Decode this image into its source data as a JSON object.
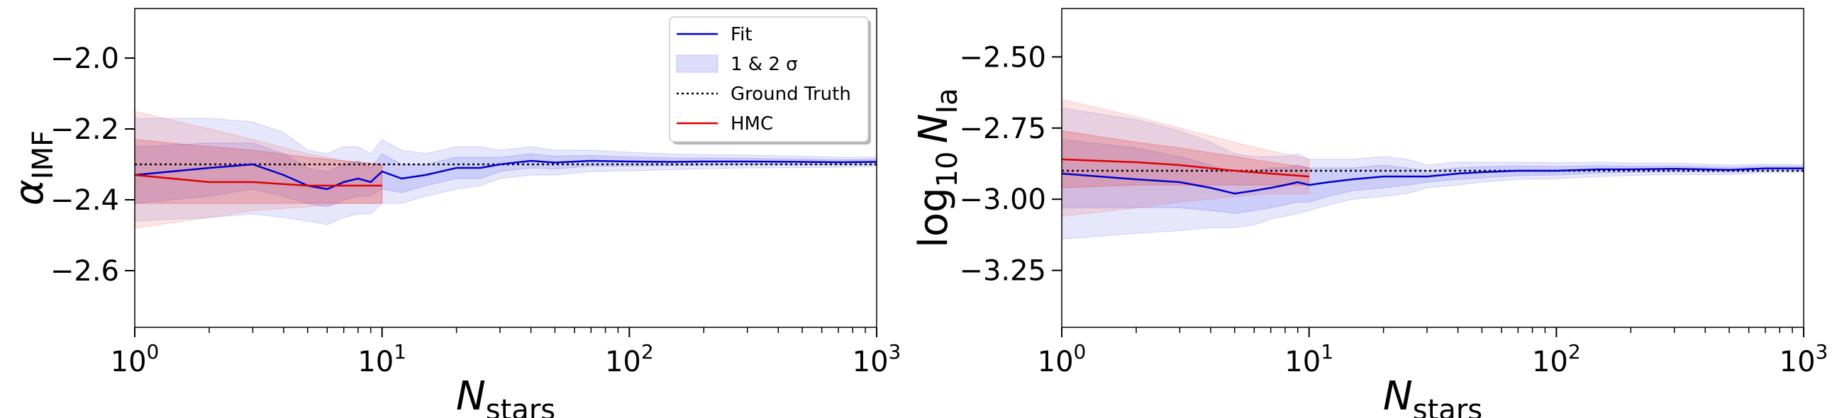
{
  "chart_data": [
    {
      "type": "line",
      "xlabel": "N",
      "xlabel_sub": "stars",
      "ylabel": "α",
      "ylabel_sub": "IMF",
      "xscale": "log",
      "xlim": [
        1,
        1000
      ],
      "ylim": [
        -2.76,
        -1.86
      ],
      "x_ticks": [
        1,
        10,
        100,
        1000
      ],
      "x_tick_labels": [
        {
          "base": "10",
          "exp": "0"
        },
        {
          "base": "10",
          "exp": "1"
        },
        {
          "base": "10",
          "exp": "2"
        },
        {
          "base": "10",
          "exp": "3"
        }
      ],
      "y_ticks": [
        -2.0,
        -2.2,
        -2.4,
        -2.6
      ],
      "y_tick_labels": [
        "−2.0",
        "−2.2",
        "−2.4",
        "−2.6"
      ],
      "legend": {
        "placement": "top-right",
        "entries": [
          {
            "label": "Fit",
            "style": "line",
            "color": "#0000cc"
          },
          {
            "label": "1 & 2 σ",
            "style": "band",
            "color": "#6666ee"
          },
          {
            "label": "Ground Truth",
            "style": "dotted",
            "color": "#000000"
          },
          {
            "label": "HMC",
            "style": "line",
            "color": "#dd0000"
          }
        ]
      },
      "ground_truth": -2.3,
      "fit": {
        "name": "Fit",
        "color": "#0000cc",
        "x": [
          1,
          2,
          3,
          4,
          5,
          6,
          7,
          8,
          9,
          10,
          12,
          15,
          20,
          25,
          30,
          40,
          50,
          70,
          100,
          150,
          200,
          300,
          500,
          700,
          1000
        ],
        "y": [
          -2.33,
          -2.31,
          -2.3,
          -2.33,
          -2.36,
          -2.37,
          -2.35,
          -2.34,
          -2.35,
          -2.32,
          -2.34,
          -2.33,
          -2.31,
          -2.31,
          -2.3,
          -2.29,
          -2.295,
          -2.29,
          -2.292,
          -2.293,
          -2.292,
          -2.292,
          -2.293,
          -2.294,
          -2.293
        ],
        "lo1": [
          -2.41,
          -2.39,
          -2.37,
          -2.39,
          -2.41,
          -2.42,
          -2.4,
          -2.39,
          -2.39,
          -2.37,
          -2.38,
          -2.36,
          -2.34,
          -2.34,
          -2.32,
          -2.31,
          -2.313,
          -2.305,
          -2.305,
          -2.304,
          -2.302,
          -2.301,
          -2.301,
          -2.301,
          -2.3
        ],
        "hi1": [
          -2.25,
          -2.24,
          -2.24,
          -2.27,
          -2.31,
          -2.32,
          -2.3,
          -2.29,
          -2.31,
          -2.27,
          -2.3,
          -2.3,
          -2.28,
          -2.28,
          -2.28,
          -2.27,
          -2.277,
          -2.275,
          -2.279,
          -2.282,
          -2.282,
          -2.283,
          -2.285,
          -2.287,
          -2.286
        ],
        "lo2": [
          -2.46,
          -2.45,
          -2.44,
          -2.45,
          -2.46,
          -2.47,
          -2.45,
          -2.44,
          -2.44,
          -2.41,
          -2.41,
          -2.39,
          -2.37,
          -2.36,
          -2.34,
          -2.33,
          -2.33,
          -2.32,
          -2.318,
          -2.315,
          -2.312,
          -2.31,
          -2.309,
          -2.308,
          -2.306
        ],
        "hi2": [
          -2.17,
          -2.17,
          -2.18,
          -2.21,
          -2.26,
          -2.27,
          -2.25,
          -2.25,
          -2.27,
          -2.23,
          -2.26,
          -2.27,
          -2.25,
          -2.25,
          -2.26,
          -2.25,
          -2.26,
          -2.26,
          -2.266,
          -2.271,
          -2.272,
          -2.274,
          -2.277,
          -2.28,
          -2.28
        ]
      },
      "hmc": {
        "name": "HMC",
        "color": "#dd0000",
        "x": [
          1,
          2,
          3,
          5,
          7,
          10
        ],
        "y": [
          -2.33,
          -2.35,
          -2.35,
          -2.36,
          -2.36,
          -2.36
        ],
        "lo1": [
          -2.41,
          -2.41,
          -2.41,
          -2.41,
          -2.41,
          -2.41
        ],
        "hi1": [
          -2.23,
          -2.25,
          -2.26,
          -2.28,
          -2.29,
          -2.3
        ],
        "lo2": [
          -2.48,
          -2.45,
          -2.43,
          -2.42,
          -2.41,
          -2.41
        ],
        "hi2": [
          -2.15,
          -2.2,
          -2.23,
          -2.27,
          -2.29,
          -2.3
        ]
      }
    },
    {
      "type": "line",
      "xlabel": "N",
      "xlabel_sub": "stars",
      "ylabel_prefix": "log",
      "ylabel_prefix_sub": "10",
      "ylabel": "N",
      "ylabel_sub": "Ia",
      "xscale": "log",
      "xlim": [
        1,
        1000
      ],
      "ylim": [
        -3.45,
        -2.33
      ],
      "x_ticks": [
        1,
        10,
        100,
        1000
      ],
      "x_tick_labels": [
        {
          "base": "10",
          "exp": "0"
        },
        {
          "base": "10",
          "exp": "1"
        },
        {
          "base": "10",
          "exp": "2"
        },
        {
          "base": "10",
          "exp": "3"
        }
      ],
      "y_ticks": [
        -2.5,
        -2.75,
        -3.0,
        -3.25
      ],
      "y_tick_labels": [
        "−2.50",
        "−2.75",
        "−3.00",
        "−3.25"
      ],
      "ground_truth": -2.9,
      "fit": {
        "name": "Fit",
        "color": "#0000cc",
        "x": [
          1,
          2,
          3,
          4,
          5,
          6,
          7,
          8,
          9,
          10,
          12,
          15,
          20,
          25,
          30,
          40,
          50,
          70,
          100,
          150,
          200,
          300,
          500,
          700,
          1000
        ],
        "y": [
          -2.91,
          -2.93,
          -2.94,
          -2.96,
          -2.98,
          -2.97,
          -2.96,
          -2.95,
          -2.94,
          -2.95,
          -2.94,
          -2.93,
          -2.92,
          -2.92,
          -2.92,
          -2.91,
          -2.905,
          -2.9,
          -2.9,
          -2.895,
          -2.895,
          -2.893,
          -2.897,
          -2.892,
          -2.892
        ],
        "lo1": [
          -3.03,
          -3.03,
          -3.03,
          -3.04,
          -3.05,
          -3.04,
          -3.03,
          -3.02,
          -3.01,
          -3.01,
          -2.99,
          -2.97,
          -2.96,
          -2.95,
          -2.94,
          -2.93,
          -2.925,
          -2.917,
          -2.915,
          -2.908,
          -2.906,
          -2.903,
          -2.906,
          -2.9,
          -2.899
        ],
        "hi1": [
          -2.79,
          -2.82,
          -2.85,
          -2.88,
          -2.91,
          -2.9,
          -2.89,
          -2.89,
          -2.88,
          -2.89,
          -2.89,
          -2.89,
          -2.88,
          -2.89,
          -2.9,
          -2.89,
          -2.886,
          -2.883,
          -2.885,
          -2.882,
          -2.884,
          -2.883,
          -2.888,
          -2.884,
          -2.885
        ],
        "lo2": [
          -3.14,
          -3.12,
          -3.11,
          -3.1,
          -3.1,
          -3.09,
          -3.07,
          -3.06,
          -3.05,
          -3.04,
          -3.02,
          -3.0,
          -2.99,
          -2.98,
          -2.96,
          -2.95,
          -2.94,
          -2.93,
          -2.928,
          -2.92,
          -2.917,
          -2.913,
          -2.914,
          -2.907,
          -2.905
        ],
        "hi2": [
          -2.68,
          -2.72,
          -2.76,
          -2.8,
          -2.84,
          -2.85,
          -2.85,
          -2.85,
          -2.84,
          -2.86,
          -2.86,
          -2.86,
          -2.85,
          -2.86,
          -2.88,
          -2.87,
          -2.87,
          -2.87,
          -2.872,
          -2.87,
          -2.873,
          -2.873,
          -2.88,
          -2.877,
          -2.879
        ]
      },
      "hmc": {
        "name": "HMC",
        "color": "#dd0000",
        "x": [
          1,
          2,
          3,
          5,
          7,
          10
        ],
        "y": [
          -2.86,
          -2.87,
          -2.88,
          -2.9,
          -2.91,
          -2.92
        ],
        "lo1": [
          -2.96,
          -2.95,
          -2.95,
          -2.95,
          -2.95,
          -2.95
        ],
        "hi1": [
          -2.76,
          -2.8,
          -2.82,
          -2.85,
          -2.87,
          -2.89
        ],
        "lo2": [
          -3.06,
          -3.03,
          -3.01,
          -2.99,
          -2.98,
          -2.98
        ],
        "hi2": [
          -2.65,
          -2.71,
          -2.75,
          -2.8,
          -2.83,
          -2.86
        ]
      }
    }
  ]
}
